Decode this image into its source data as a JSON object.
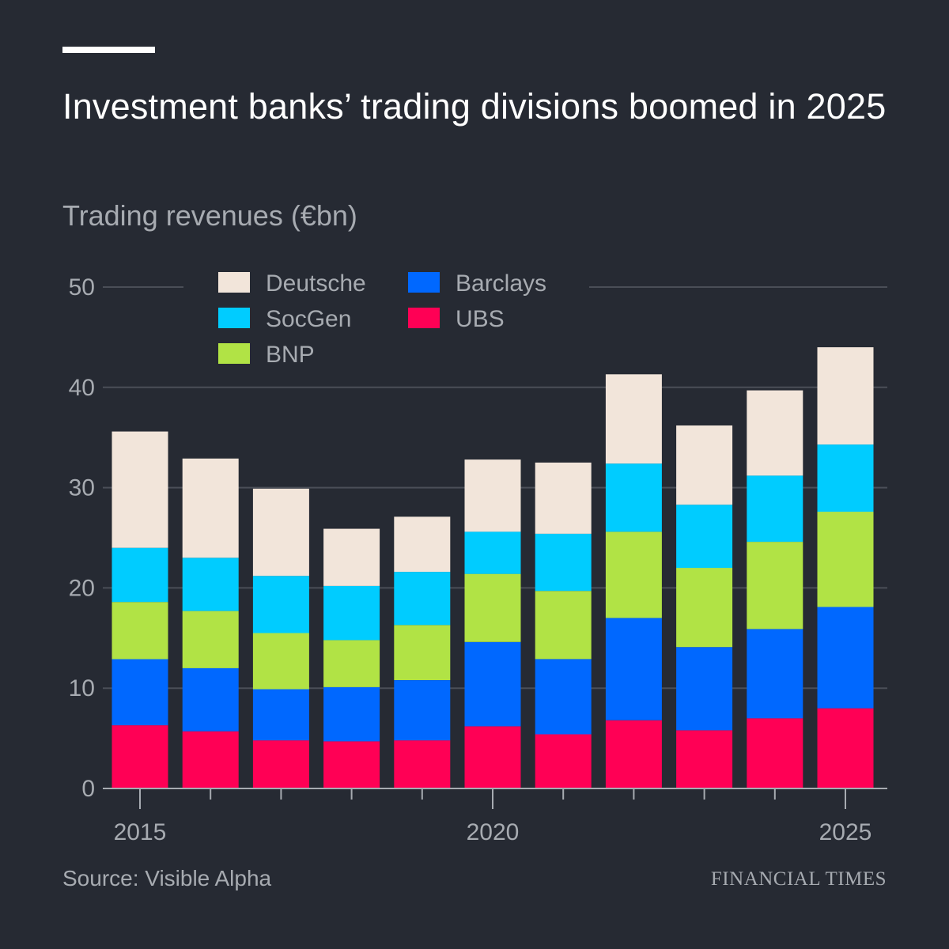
{
  "header": {
    "title": "Investment banks’ trading divisions boomed in 2025",
    "subtitle": "Trading revenues (€bn)"
  },
  "footer": {
    "source": "Source: Visible Alpha",
    "brand": "Financial Times"
  },
  "colors": {
    "background": "#262a33",
    "text_muted": "#a7abb1",
    "gridline": "#4a4e57",
    "axis": "#a7abb1"
  },
  "chart_data": {
    "type": "bar",
    "stacked": true,
    "title": "Investment banks’ trading divisions boomed in 2025",
    "subtitle": "Trading revenues (€bn)",
    "ylabel": "",
    "xlabel": "",
    "ylim": [
      0,
      50
    ],
    "yticks": [
      0,
      10,
      20,
      30,
      40,
      50
    ],
    "xtick_labels": [
      {
        "year": 2015,
        "label": "2015"
      },
      {
        "year": 2020,
        "label": "2020"
      },
      {
        "year": 2025,
        "label": "2025"
      }
    ],
    "categories": [
      2015,
      2016,
      2017,
      2018,
      2019,
      2020,
      2021,
      2022,
      2023,
      2024,
      2025
    ],
    "grid": "horizontal",
    "legend_position": "top-left",
    "series": [
      {
        "name": "UBS",
        "color": "#ff0055",
        "values": [
          6.3,
          5.7,
          4.8,
          4.7,
          4.8,
          6.2,
          5.4,
          6.8,
          5.8,
          7.0,
          8.0
        ]
      },
      {
        "name": "Barclays",
        "color": "#0068ff",
        "values": [
          6.6,
          6.3,
          5.1,
          5.4,
          6.0,
          8.4,
          7.5,
          10.2,
          8.3,
          8.9,
          10.1
        ]
      },
      {
        "name": "BNP",
        "color": "#b1e345",
        "values": [
          5.7,
          5.7,
          5.6,
          4.7,
          5.5,
          6.8,
          6.8,
          8.6,
          7.9,
          8.7,
          9.5
        ]
      },
      {
        "name": "SocGen",
        "color": "#00ccff",
        "values": [
          5.4,
          5.3,
          5.7,
          5.4,
          5.3,
          4.2,
          5.7,
          6.8,
          6.3,
          6.6,
          6.7
        ]
      },
      {
        "name": "Deutsche",
        "color": "#f2e5da",
        "values": [
          11.6,
          9.9,
          8.7,
          5.7,
          5.5,
          7.2,
          7.1,
          8.9,
          7.9,
          8.5,
          9.7
        ]
      }
    ],
    "legend_order": [
      "Deutsche",
      "SocGen",
      "BNP",
      "Barclays",
      "UBS"
    ]
  }
}
